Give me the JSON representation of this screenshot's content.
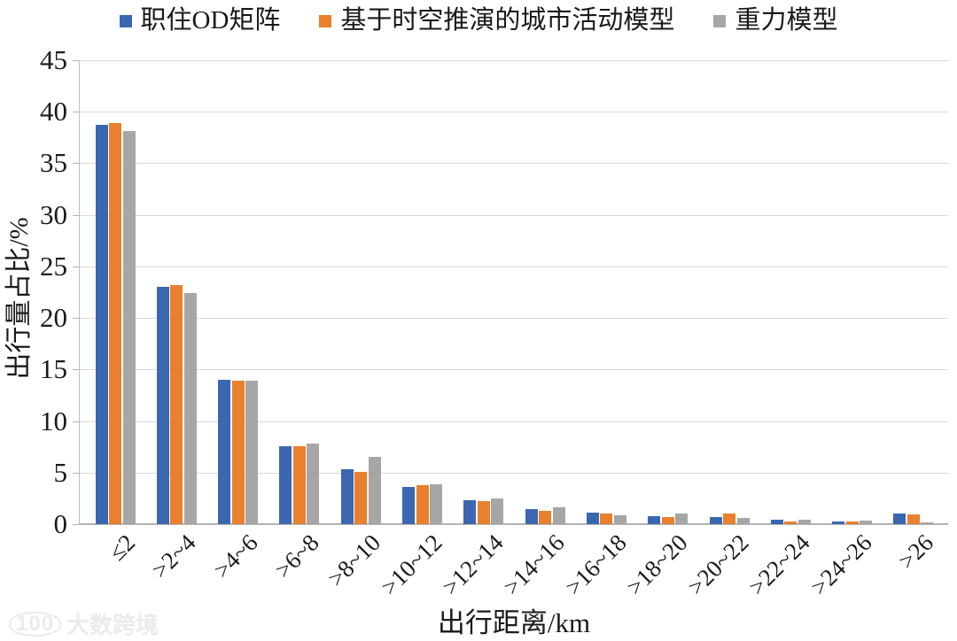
{
  "legend": {
    "items": [
      {
        "label": "职住OD矩阵",
        "color": "#3a67b0"
      },
      {
        "label": "基于时空推演的城市活动模型",
        "color": "#e8802e"
      },
      {
        "label": "重力模型",
        "color": "#a6a6a6"
      }
    ]
  },
  "chart_data": {
    "type": "bar",
    "title": "",
    "xlabel": "出行距离/km",
    "ylabel": "出行量占比/%",
    "ylim": [
      0,
      45
    ],
    "ytick_step": 5,
    "grid": true,
    "legend_position": "top",
    "categories": [
      "≤2",
      ">2~4",
      ">4~6",
      ">6~8",
      ">8~10",
      ">10~12",
      ">12~14",
      ">14~16",
      ">16~18",
      ">18~20",
      ">20~22",
      ">22~24",
      ">24~26",
      ">26"
    ],
    "series": [
      {
        "name": "职住OD矩阵",
        "color": "#3a67b0",
        "values": [
          38.7,
          23.0,
          14.0,
          7.6,
          5.3,
          3.6,
          2.3,
          1.5,
          1.1,
          0.8,
          0.7,
          0.4,
          0.3,
          1.0
        ]
      },
      {
        "name": "基于时空推演的城市活动模型",
        "color": "#e8802e",
        "values": [
          38.9,
          23.2,
          13.9,
          7.6,
          5.1,
          3.8,
          2.2,
          1.3,
          1.0,
          0.7,
          1.0,
          0.3,
          0.25,
          0.95
        ]
      },
      {
        "name": "重力模型",
        "color": "#a6a6a6",
        "values": [
          38.1,
          22.4,
          13.9,
          7.8,
          6.5,
          3.9,
          2.5,
          1.6,
          0.9,
          1.0,
          0.6,
          0.45,
          0.35,
          0.2
        ]
      }
    ]
  },
  "watermark": {
    "logo": "100",
    "text": "大数跨境"
  }
}
